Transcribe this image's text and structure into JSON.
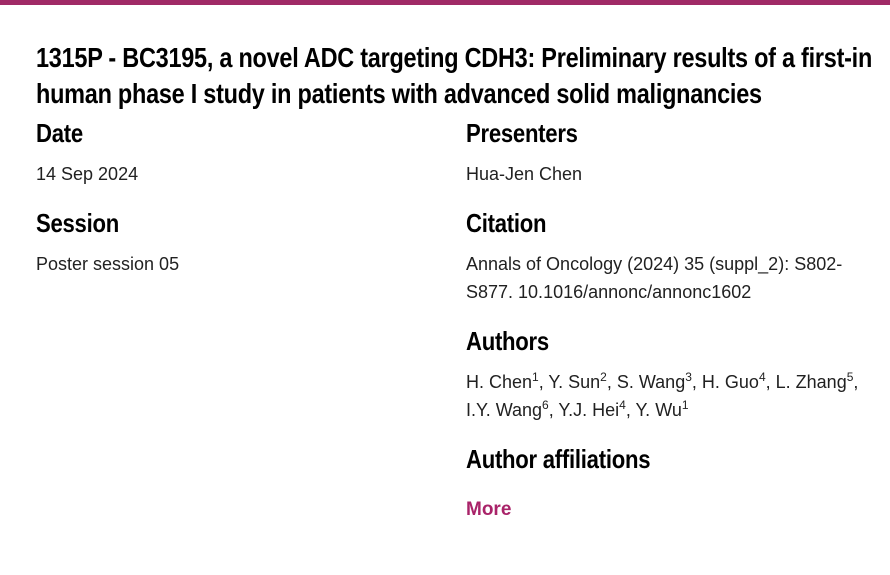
{
  "brand": {
    "bar_color": "#a02a66",
    "link_color": "#a92369",
    "heading_color": "#000000",
    "body_text_color": "#212121"
  },
  "title": "1315P - BC3195, a novel ADC targeting CDH3: Preliminary results of a first-in human phase I study in patients with advanced solid malignancies",
  "sections": {
    "date": {
      "heading": "Date",
      "value": "14 Sep 2024"
    },
    "session": {
      "heading": "Session",
      "value": "Poster session 05"
    },
    "presenters": {
      "heading": "Presenters",
      "value": "Hua-Jen Chen"
    },
    "citation": {
      "heading": "Citation",
      "value": "Annals of Oncology (2024) 35 (suppl_2): S802-S877. 10.1016/annonc/annonc1602"
    },
    "authors": {
      "heading": "Authors",
      "list": [
        {
          "name": "H. Chen",
          "sup": "1"
        },
        {
          "name": "Y. Sun",
          "sup": "2"
        },
        {
          "name": "S. Wang",
          "sup": "3"
        },
        {
          "name": "H. Guo",
          "sup": "4"
        },
        {
          "name": "L. Zhang",
          "sup": "5"
        },
        {
          "name": "I.Y. Wang",
          "sup": "6"
        },
        {
          "name": "Y.J. Hei",
          "sup": "4"
        },
        {
          "name": "Y. Wu",
          "sup": "1"
        }
      ]
    },
    "affiliations": {
      "heading": "Author affiliations",
      "more_label": "More"
    }
  }
}
